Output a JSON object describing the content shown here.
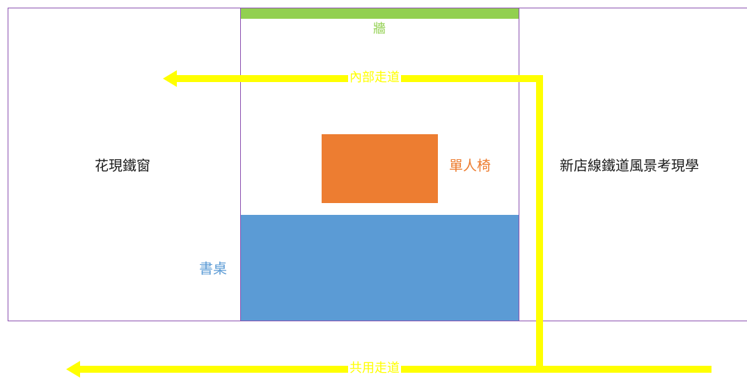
{
  "zones": {
    "left_exhibit": {
      "label": "花現鐵窗"
    },
    "right_exhibit": {
      "label": "新店線鐵道風景考現學"
    }
  },
  "wall": {
    "label": "牆",
    "color": "#92d050"
  },
  "chair": {
    "label": "單人椅",
    "color": "#ed7d31"
  },
  "desk": {
    "label": "書桌",
    "color": "#5b9bd5"
  },
  "walkways": {
    "internal": {
      "label": "內部走道"
    },
    "shared": {
      "label": "共用走道"
    },
    "color": "#ffff00"
  },
  "border_color": "#8a4fb0"
}
